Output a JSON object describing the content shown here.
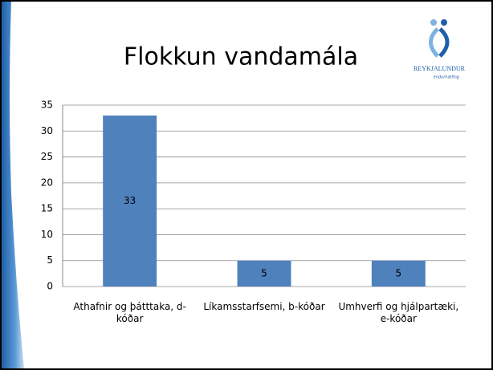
{
  "title": "Flokkun vandamála",
  "logo": {
    "name": "REYKJALUNDUR",
    "tagline": "endurhæfing"
  },
  "chart_data": {
    "type": "bar",
    "categories": [
      "Athafnir og þátttaka, d-kóðar",
      "Líkamsstarfsemi, b-kóðar",
      "Umhverfi og hjálpartæki, e-kóðar"
    ],
    "values": [
      33,
      5,
      5
    ],
    "color": "#4f81bd",
    "ylim": [
      0,
      35
    ],
    "yticks": [
      0,
      5,
      10,
      15,
      20,
      25,
      30,
      35
    ],
    "grid": true
  }
}
